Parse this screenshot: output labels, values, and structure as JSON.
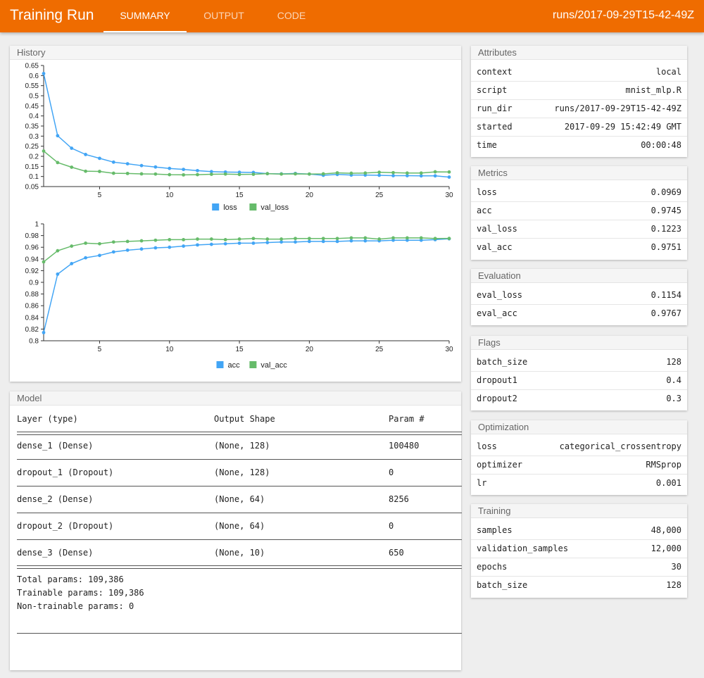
{
  "header": {
    "title": "Training Run",
    "tabs": [
      {
        "label": "SUMMARY",
        "active": true
      },
      {
        "label": "OUTPUT",
        "active": false
      },
      {
        "label": "CODE",
        "active": false
      }
    ],
    "run_path": "runs/2017-09-29T15-42-49Z",
    "accent_color": "#ef6c00"
  },
  "history": {
    "title": "History",
    "chart_data": [
      {
        "type": "line",
        "xlim": [
          1,
          30
        ],
        "xticks": [
          5,
          10,
          15,
          20,
          25,
          30
        ],
        "ylim": [
          0.05,
          0.65
        ],
        "yticks": [
          0.05,
          0.1,
          0.15,
          0.2,
          0.25,
          0.3,
          0.35,
          0.4,
          0.45,
          0.5,
          0.55,
          0.6,
          0.65
        ],
        "x": [
          1,
          2,
          3,
          4,
          5,
          6,
          7,
          8,
          9,
          10,
          11,
          12,
          13,
          14,
          15,
          16,
          17,
          18,
          19,
          20,
          21,
          22,
          23,
          24,
          25,
          26,
          27,
          28,
          29,
          30
        ],
        "legend": "bottom",
        "series": [
          {
            "name": "loss",
            "color": "#42a5f5",
            "values": [
              0.61,
              0.302,
              0.24,
              0.209,
              0.19,
              0.171,
              0.163,
              0.154,
              0.147,
              0.14,
              0.135,
              0.129,
              0.124,
              0.122,
              0.121,
              0.12,
              0.114,
              0.113,
              0.115,
              0.112,
              0.106,
              0.11,
              0.107,
              0.107,
              0.106,
              0.104,
              0.104,
              0.103,
              0.103,
              0.0969
            ]
          },
          {
            "name": "val_loss",
            "color": "#66bb6a",
            "values": [
              0.226,
              0.169,
              0.146,
              0.126,
              0.125,
              0.116,
              0.115,
              0.113,
              0.112,
              0.109,
              0.108,
              0.109,
              0.111,
              0.112,
              0.11,
              0.111,
              0.114,
              0.112,
              0.113,
              0.112,
              0.113,
              0.118,
              0.116,
              0.117,
              0.121,
              0.119,
              0.117,
              0.117,
              0.123,
              0.1223
            ]
          }
        ]
      },
      {
        "type": "line",
        "xlim": [
          1,
          30
        ],
        "xticks": [
          5,
          10,
          15,
          20,
          25,
          30
        ],
        "ylim": [
          0.8,
          1
        ],
        "yticks": [
          0.8,
          0.82,
          0.84,
          0.86,
          0.88,
          0.9,
          0.92,
          0.94,
          0.96,
          0.98,
          1
        ],
        "x": [
          1,
          2,
          3,
          4,
          5,
          6,
          7,
          8,
          9,
          10,
          11,
          12,
          13,
          14,
          15,
          16,
          17,
          18,
          19,
          20,
          21,
          22,
          23,
          24,
          25,
          26,
          27,
          28,
          29,
          30
        ],
        "legend": "bottom",
        "series": [
          {
            "name": "acc",
            "color": "#42a5f5",
            "values": [
              0.814,
              0.914,
              0.932,
              0.942,
              0.946,
              0.952,
              0.955,
              0.957,
              0.959,
              0.96,
              0.962,
              0.964,
              0.965,
              0.966,
              0.967,
              0.967,
              0.968,
              0.969,
              0.969,
              0.97,
              0.97,
              0.97,
              0.971,
              0.971,
              0.971,
              0.972,
              0.972,
              0.972,
              0.973,
              0.9745
            ]
          },
          {
            "name": "val_acc",
            "color": "#66bb6a",
            "values": [
              0.935,
              0.954,
              0.962,
              0.967,
              0.966,
              0.969,
              0.97,
              0.971,
              0.972,
              0.973,
              0.973,
              0.974,
              0.974,
              0.973,
              0.974,
              0.975,
              0.974,
              0.974,
              0.975,
              0.975,
              0.975,
              0.975,
              0.976,
              0.976,
              0.974,
              0.976,
              0.976,
              0.976,
              0.975,
              0.9751
            ]
          }
        ]
      }
    ]
  },
  "model": {
    "title": "Model",
    "headers": [
      "Layer (type)",
      "Output Shape",
      "Param #"
    ],
    "layers": [
      [
        "dense_1 (Dense)",
        "(None, 128)",
        "100480"
      ],
      [
        "dropout_1 (Dropout)",
        "(None, 128)",
        "0"
      ],
      [
        "dense_2 (Dense)",
        "(None, 64)",
        "8256"
      ],
      [
        "dropout_2 (Dropout)",
        "(None, 64)",
        "0"
      ],
      [
        "dense_3 (Dense)",
        "(None, 10)",
        "650"
      ]
    ],
    "totals": [
      "Total params: 109,386",
      "Trainable params: 109,386",
      "Non-trainable params: 0"
    ]
  },
  "attributes": {
    "title": "Attributes",
    "rows": [
      [
        "context",
        "local"
      ],
      [
        "script",
        "mnist_mlp.R"
      ],
      [
        "run_dir",
        "runs/2017-09-29T15-42-49Z"
      ],
      [
        "started",
        "2017-09-29 15:42:49 GMT"
      ],
      [
        "time",
        "00:00:48"
      ]
    ]
  },
  "metrics": {
    "title": "Metrics",
    "rows": [
      [
        "loss",
        "0.0969"
      ],
      [
        "acc",
        "0.9745"
      ],
      [
        "val_loss",
        "0.1223"
      ],
      [
        "val_acc",
        "0.9751"
      ]
    ]
  },
  "evaluation": {
    "title": "Evaluation",
    "rows": [
      [
        "eval_loss",
        "0.1154"
      ],
      [
        "eval_acc",
        "0.9767"
      ]
    ]
  },
  "flags": {
    "title": "Flags",
    "rows": [
      [
        "batch_size",
        "128"
      ],
      [
        "dropout1",
        "0.4"
      ],
      [
        "dropout2",
        "0.3"
      ]
    ]
  },
  "optimization": {
    "title": "Optimization",
    "rows": [
      [
        "loss",
        "categorical_crossentropy"
      ],
      [
        "optimizer",
        "RMSprop"
      ],
      [
        "lr",
        "0.001"
      ]
    ]
  },
  "training": {
    "title": "Training",
    "rows": [
      [
        "samples",
        "48,000"
      ],
      [
        "validation_samples",
        "12,000"
      ],
      [
        "epochs",
        "30"
      ],
      [
        "batch_size",
        "128"
      ]
    ]
  }
}
